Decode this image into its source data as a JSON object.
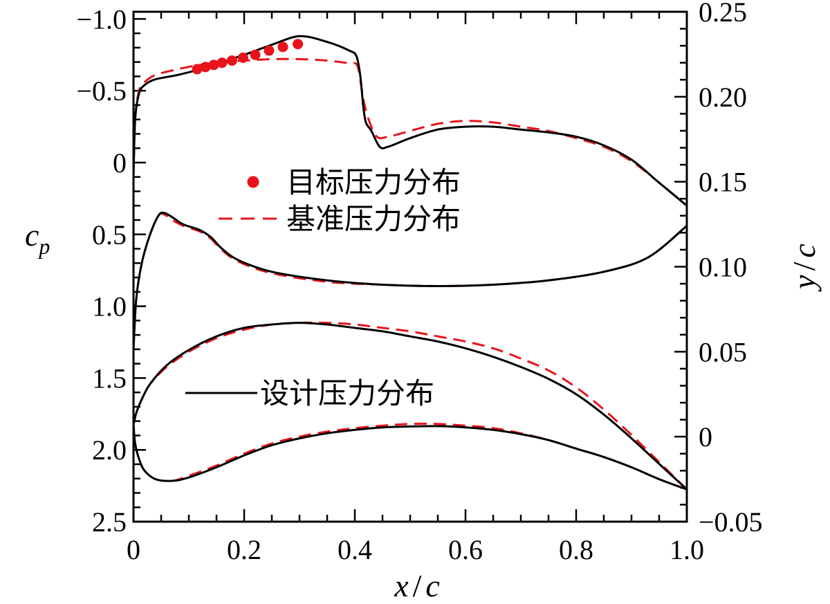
{
  "chart_data": {
    "type": "line",
    "title": "",
    "xlabel": {
      "var": "x",
      "sep": "/",
      "den": "c"
    },
    "ylabel_left": {
      "var": "c",
      "sub": "p"
    },
    "ylabel_right": {
      "var": "y",
      "sep": "/",
      "den": "c"
    },
    "xlim": [
      0,
      1.0
    ],
    "ylim_left": [
      -1.05,
      2.5
    ],
    "ylim_left_inverted": true,
    "ylim_right": [
      -0.05,
      0.25
    ],
    "x_ticks": [
      "0",
      "0.2",
      "0.4",
      "0.6",
      "0.8",
      "1.0"
    ],
    "x_tick_values": [
      0,
      0.2,
      0.4,
      0.6,
      0.8,
      1.0
    ],
    "left_ticks": [
      "−1.0",
      "−0.5",
      "0",
      "0.5",
      "1.0",
      "1.5",
      "2.0",
      "2.5"
    ],
    "left_tick_values": [
      -1.0,
      -0.5,
      0,
      0.5,
      1.0,
      1.5,
      2.0,
      2.5
    ],
    "right_ticks": [
      "0.25",
      "0.20",
      "0.15",
      "0.10",
      "0.05",
      "0",
      "−0.05"
    ],
    "right_tick_values": [
      0.25,
      0.2,
      0.15,
      0.1,
      0.05,
      0,
      -0.05
    ],
    "legend": {
      "target": "目标压力分布",
      "baseline": "基准压力分布",
      "design": "设计压力分布"
    },
    "colors": {
      "design": "#000000",
      "baseline": "#e8141b",
      "target": "#e8141b"
    },
    "series": [
      {
        "name": "设计压力分布",
        "axis": "left",
        "style": "solid",
        "curves": [
          [
            [
              0,
              0.1
            ],
            [
              0.003,
              -0.3
            ],
            [
              0.01,
              -0.48
            ],
            [
              0.02,
              -0.54
            ],
            [
              0.04,
              -0.58
            ],
            [
              0.08,
              -0.61
            ],
            [
              0.12,
              -0.65
            ],
            [
              0.16,
              -0.7
            ],
            [
              0.2,
              -0.75
            ],
            [
              0.25,
              -0.82
            ],
            [
              0.3,
              -0.88
            ],
            [
              0.35,
              -0.84
            ],
            [
              0.39,
              -0.78
            ],
            [
              0.403,
              -0.74
            ],
            [
              0.41,
              -0.6
            ],
            [
              0.415,
              -0.4
            ],
            [
              0.42,
              -0.28
            ],
            [
              0.43,
              -0.22
            ],
            [
              0.445,
              -0.11
            ],
            [
              0.46,
              -0.11
            ],
            [
              0.5,
              -0.17
            ],
            [
              0.55,
              -0.23
            ],
            [
              0.6,
              -0.25
            ],
            [
              0.65,
              -0.25
            ],
            [
              0.7,
              -0.23
            ],
            [
              0.75,
              -0.21
            ],
            [
              0.8,
              -0.18
            ],
            [
              0.85,
              -0.12
            ],
            [
              0.9,
              -0.02
            ],
            [
              0.95,
              0.14
            ],
            [
              1.0,
              0.3
            ]
          ],
          [
            [
              0,
              1.3
            ],
            [
              0.005,
              0.95
            ],
            [
              0.015,
              0.7
            ],
            [
              0.03,
              0.5
            ],
            [
              0.045,
              0.37
            ],
            [
              0.055,
              0.35
            ],
            [
              0.07,
              0.38
            ],
            [
              0.09,
              0.43
            ],
            [
              0.12,
              0.47
            ],
            [
              0.14,
              0.52
            ],
            [
              0.16,
              0.6
            ],
            [
              0.19,
              0.68
            ],
            [
              0.25,
              0.76
            ],
            [
              0.35,
              0.82
            ],
            [
              0.45,
              0.85
            ],
            [
              0.55,
              0.86
            ],
            [
              0.65,
              0.85
            ],
            [
              0.75,
              0.82
            ],
            [
              0.85,
              0.76
            ],
            [
              0.93,
              0.66
            ],
            [
              1.0,
              0.44
            ]
          ]
        ]
      },
      {
        "name": "基准压力分布",
        "axis": "left",
        "style": "dashed",
        "curves": [
          [
            [
              0,
              0.1
            ],
            [
              0.003,
              -0.3
            ],
            [
              0.01,
              -0.5
            ],
            [
              0.02,
              -0.56
            ],
            [
              0.04,
              -0.61
            ],
            [
              0.08,
              -0.65
            ],
            [
              0.12,
              -0.68
            ],
            [
              0.16,
              -0.7
            ],
            [
              0.2,
              -0.71
            ],
            [
              0.25,
              -0.72
            ],
            [
              0.3,
              -0.72
            ],
            [
              0.35,
              -0.71
            ],
            [
              0.39,
              -0.69
            ],
            [
              0.405,
              -0.67
            ],
            [
              0.415,
              -0.45
            ],
            [
              0.425,
              -0.3
            ],
            [
              0.44,
              -0.18
            ],
            [
              0.46,
              -0.18
            ],
            [
              0.5,
              -0.22
            ],
            [
              0.55,
              -0.27
            ],
            [
              0.6,
              -0.29
            ],
            [
              0.65,
              -0.28
            ],
            [
              0.7,
              -0.25
            ],
            [
              0.75,
              -0.22
            ],
            [
              0.8,
              -0.17
            ],
            [
              0.85,
              -0.11
            ],
            [
              0.9,
              -0.01
            ],
            [
              0.95,
              0.14
            ],
            [
              1.0,
              0.3
            ]
          ],
          [
            [
              0,
              1.3
            ],
            [
              0.005,
              0.95
            ],
            [
              0.015,
              0.7
            ],
            [
              0.03,
              0.5
            ],
            [
              0.045,
              0.37
            ],
            [
              0.055,
              0.36
            ],
            [
              0.07,
              0.4
            ],
            [
              0.09,
              0.44
            ],
            [
              0.12,
              0.48
            ],
            [
              0.14,
              0.53
            ],
            [
              0.16,
              0.61
            ],
            [
              0.19,
              0.69
            ],
            [
              0.25,
              0.77
            ],
            [
              0.35,
              0.83
            ],
            [
              0.45,
              0.85
            ],
            [
              0.55,
              0.86
            ],
            [
              0.65,
              0.85
            ],
            [
              0.75,
              0.82
            ],
            [
              0.85,
              0.76
            ],
            [
              0.93,
              0.66
            ],
            [
              1.0,
              0.44
            ]
          ]
        ]
      },
      {
        "name": "设计压力分布 (airfoil)",
        "axis": "right",
        "style": "solid",
        "curves": [
          [
            [
              1.0,
              -0.031
            ],
            [
              0.95,
              -0.016
            ],
            [
              0.9,
              -0.001
            ],
            [
              0.85,
              0.013
            ],
            [
              0.8,
              0.025
            ],
            [
              0.75,
              0.034
            ],
            [
              0.7,
              0.041
            ],
            [
              0.65,
              0.047
            ],
            [
              0.6,
              0.052
            ],
            [
              0.55,
              0.056
            ],
            [
              0.5,
              0.059
            ],
            [
              0.45,
              0.062
            ],
            [
              0.4,
              0.064
            ],
            [
              0.35,
              0.066
            ],
            [
              0.3,
              0.067
            ],
            [
              0.25,
              0.066
            ],
            [
              0.2,
              0.064
            ],
            [
              0.15,
              0.059
            ],
            [
              0.1,
              0.051
            ],
            [
              0.06,
              0.042
            ],
            [
              0.03,
              0.031
            ],
            [
              0.015,
              0.022
            ],
            [
              0.005,
              0.014
            ],
            [
              0.0,
              0.007
            ]
          ],
          [
            [
              0.0,
              0.007
            ],
            [
              0.003,
              -0.004
            ],
            [
              0.01,
              -0.013
            ],
            [
              0.02,
              -0.02
            ],
            [
              0.04,
              -0.025
            ],
            [
              0.07,
              -0.026
            ],
            [
              0.1,
              -0.024
            ],
            [
              0.15,
              -0.018
            ],
            [
              0.2,
              -0.011
            ],
            [
              0.25,
              -0.005
            ],
            [
              0.3,
              -0.001
            ],
            [
              0.35,
              0.002
            ],
            [
              0.4,
              0.004
            ],
            [
              0.45,
              0.0055
            ],
            [
              0.5,
              0.006
            ],
            [
              0.55,
              0.0062
            ],
            [
              0.6,
              0.0055
            ],
            [
              0.65,
              0.004
            ],
            [
              0.7,
              0.0015
            ],
            [
              0.75,
              -0.002
            ],
            [
              0.8,
              -0.007
            ],
            [
              0.85,
              -0.012
            ],
            [
              0.9,
              -0.018
            ],
            [
              0.95,
              -0.025
            ],
            [
              1.0,
              -0.031
            ]
          ]
        ]
      },
      {
        "name": "基准压力分布 (airfoil)",
        "axis": "right",
        "style": "dashed",
        "curves": [
          [
            [
              1.0,
              -0.031
            ],
            [
              0.95,
              -0.015
            ],
            [
              0.9,
              0.001
            ],
            [
              0.85,
              0.016
            ],
            [
              0.8,
              0.029
            ],
            [
              0.75,
              0.039
            ],
            [
              0.7,
              0.046
            ],
            [
              0.65,
              0.052
            ],
            [
              0.6,
              0.056
            ],
            [
              0.55,
              0.059
            ],
            [
              0.5,
              0.062
            ],
            [
              0.45,
              0.064
            ],
            [
              0.4,
              0.066
            ],
            [
              0.35,
              0.067
            ],
            [
              0.3,
              0.067
            ],
            [
              0.25,
              0.066
            ],
            [
              0.2,
              0.063
            ],
            [
              0.15,
              0.058
            ],
            [
              0.1,
              0.05
            ],
            [
              0.06,
              0.041
            ],
            [
              0.03,
              0.031
            ],
            [
              0.015,
              0.022
            ],
            [
              0.005,
              0.014
            ],
            [
              0.0,
              0.007
            ]
          ],
          [
            [
              0.0,
              0.007
            ],
            [
              0.003,
              -0.004
            ],
            [
              0.01,
              -0.013
            ],
            [
              0.02,
              -0.02
            ],
            [
              0.04,
              -0.025
            ],
            [
              0.07,
              -0.026
            ],
            [
              0.1,
              -0.023
            ],
            [
              0.15,
              -0.017
            ],
            [
              0.2,
              -0.01
            ],
            [
              0.25,
              -0.004
            ],
            [
              0.3,
              0.0
            ],
            [
              0.35,
              0.003
            ],
            [
              0.4,
              0.005
            ],
            [
              0.45,
              0.0065
            ],
            [
              0.5,
              0.0075
            ],
            [
              0.55,
              0.0075
            ],
            [
              0.6,
              0.0065
            ],
            [
              0.65,
              0.005
            ],
            [
              0.7,
              0.002
            ],
            [
              0.75,
              -0.002
            ],
            [
              0.8,
              -0.007
            ],
            [
              0.85,
              -0.012
            ],
            [
              0.9,
              -0.018
            ],
            [
              0.95,
              -0.025
            ],
            [
              1.0,
              -0.031
            ]
          ]
        ]
      },
      {
        "name": "目标压力分布",
        "axis": "left",
        "style": "markers",
        "points": [
          [
            0.115,
            -0.65
          ],
          [
            0.13,
            -0.665
          ],
          [
            0.145,
            -0.68
          ],
          [
            0.16,
            -0.695
          ],
          [
            0.178,
            -0.71
          ],
          [
            0.198,
            -0.73
          ],
          [
            0.22,
            -0.75
          ],
          [
            0.245,
            -0.78
          ],
          [
            0.27,
            -0.805
          ],
          [
            0.297,
            -0.825
          ]
        ]
      }
    ]
  }
}
